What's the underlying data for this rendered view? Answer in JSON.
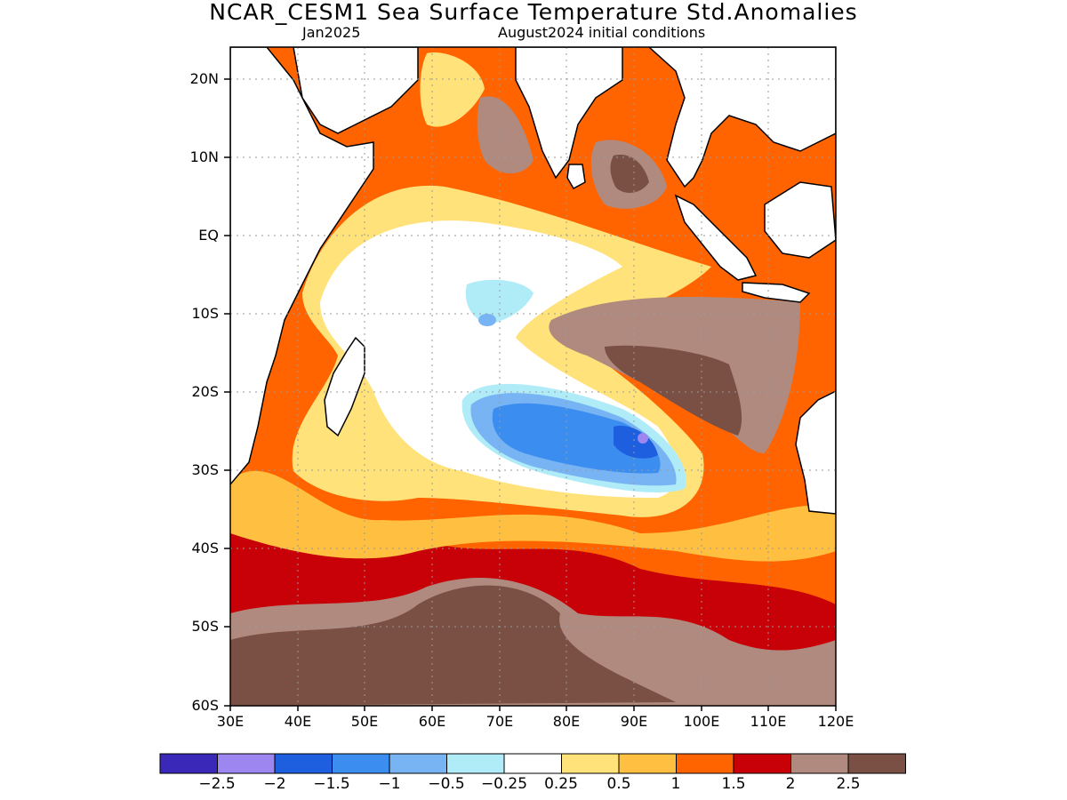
{
  "title": "NCAR_CESM1 Sea Surface Temperature Std.Anomalies",
  "subtitle_left": "Jan2025",
  "subtitle_right": "August2024 initial conditions",
  "map": {
    "region": "Indian Ocean",
    "lon_range": [
      30,
      120
    ],
    "lat_range": [
      -60,
      24
    ],
    "lat_ticks": [
      "20N",
      "10N",
      "EQ",
      "10S",
      "20S",
      "30S",
      "40S",
      "50S",
      "60S"
    ],
    "lon_ticks": [
      "30E",
      "40E",
      "50E",
      "60E",
      "70E",
      "80E",
      "90E",
      "100E",
      "110E",
      "120E"
    ],
    "gridlines": "dotted"
  },
  "colorbar": {
    "labels": [
      "−2.5",
      "−2",
      "−1.5",
      "−1",
      "−0.5",
      "−0.25",
      "0.25",
      "0.5",
      "1",
      "1.5",
      "2",
      "2.5"
    ],
    "colors": [
      "#3a28b8",
      "#9d86f0",
      "#1e5fe0",
      "#3b8ef0",
      "#78b4f4",
      "#b0ecf8",
      "#ffffff",
      "#ffe27a",
      "#ffbf40",
      "#ff6400",
      "#c80008",
      "#b08a7e",
      "#7a5044"
    ]
  }
}
